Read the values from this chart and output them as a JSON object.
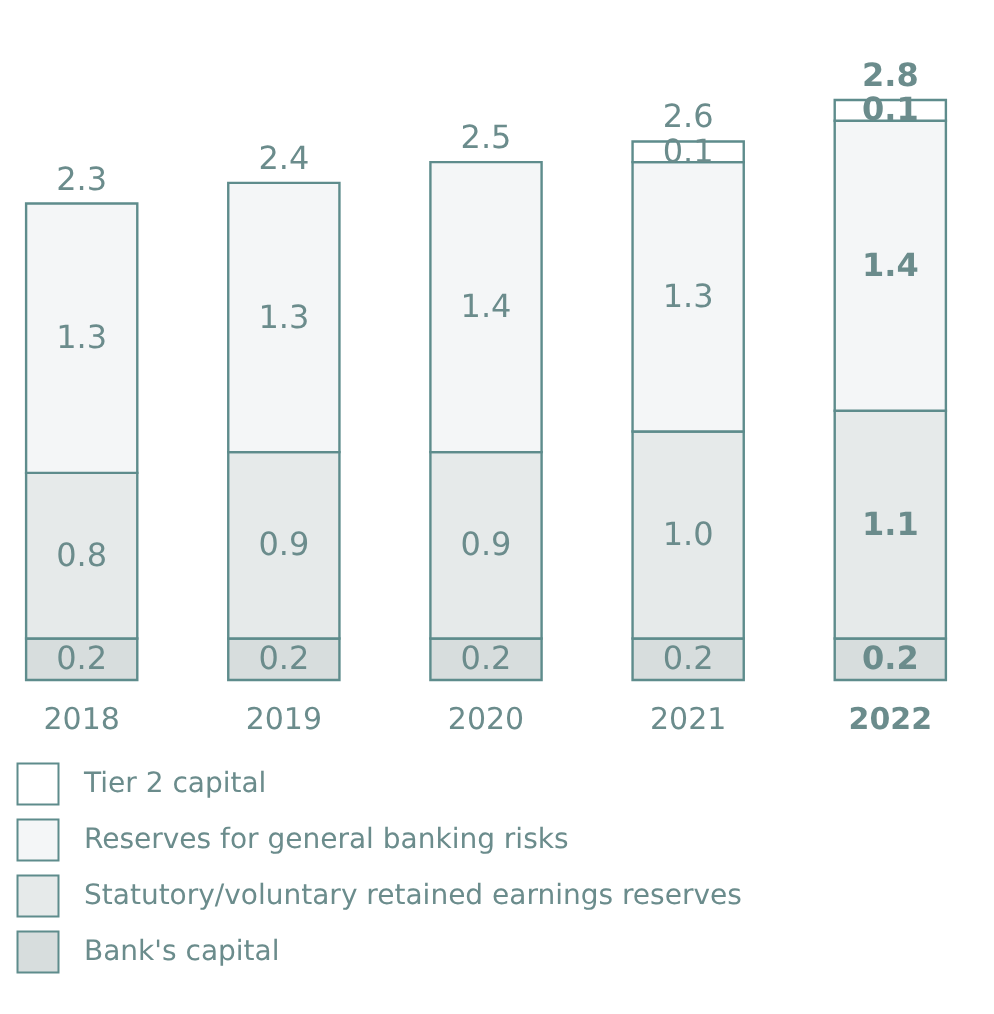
{
  "chart_data": {
    "type": "bar",
    "stacked": true,
    "data_labels": true,
    "legend": "bottom",
    "grid": false,
    "tick_labels": "x",
    "categories": [
      "2018",
      "2019",
      "2020",
      "2021",
      "2022"
    ],
    "series": [
      {
        "name": "Bank's capital",
        "color": "#d7dddd",
        "values": [
          0.2,
          0.2,
          0.2,
          0.2,
          0.2
        ]
      },
      {
        "name": "Statutory/voluntary retained earnings reserves",
        "color": "#e6eaea",
        "values": [
          0.8,
          0.9,
          0.9,
          1.0,
          1.1
        ],
        "value_labels": [
          "0.8",
          "0.9",
          "0.9",
          "1.0",
          "1.1"
        ]
      },
      {
        "name": "Reserves for general banking risks",
        "color": "#f4f6f7",
        "values": [
          1.3,
          1.3,
          1.4,
          1.3,
          1.4
        ]
      },
      {
        "name": "Tier 2 capital",
        "color": "#ffffff",
        "values": [
          null,
          null,
          null,
          0.1,
          0.1
        ]
      }
    ],
    "totals": [
      "2.3",
      "2.4",
      "2.5",
      "2.6",
      "2.8"
    ]
  }
}
